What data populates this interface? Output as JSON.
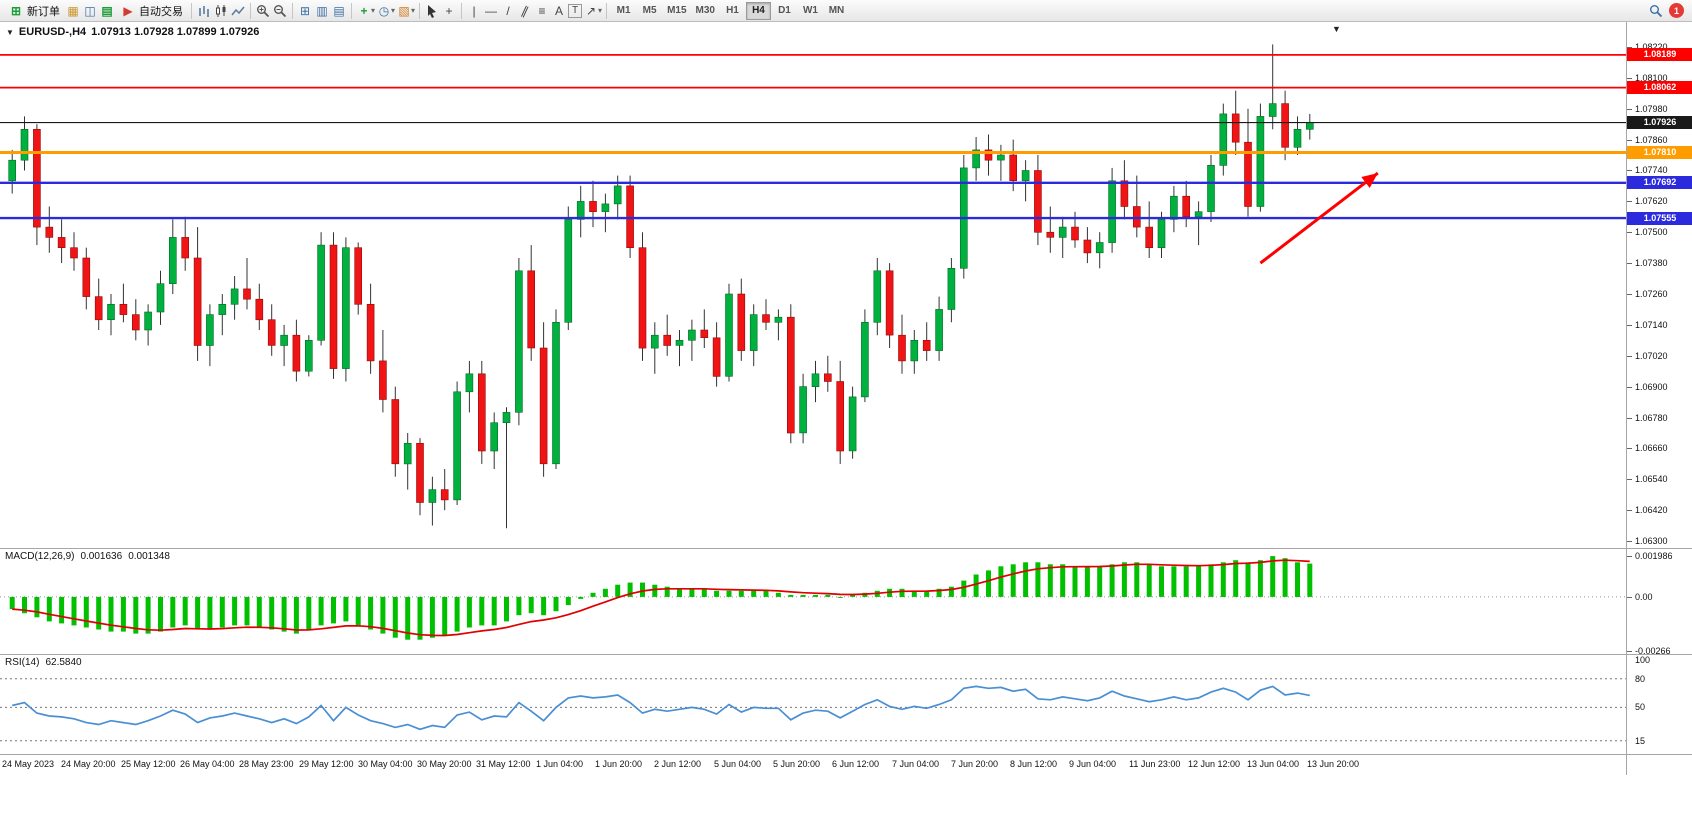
{
  "toolbar": {
    "new_order": "新订单",
    "autotrading": "自动交易",
    "timeframes": [
      "M1",
      "M5",
      "M15",
      "M30",
      "H1",
      "H4",
      "D1",
      "W1",
      "MN"
    ],
    "active_timeframe": "H4",
    "notification_badge": "1",
    "icons": {
      "new_order": "⊞",
      "new_chart": "▦",
      "profiles": "◫",
      "market_watch": "▤",
      "autotrading": "▶",
      "tile_windows": "⊞",
      "cascade_windows": "▥",
      "arrange_windows": "▤",
      "indicators": "+",
      "periods_clock": "◷",
      "templates": "▧",
      "crosshair": "+",
      "vertical_line": "|",
      "horizontal_line": "—",
      "trend_line": "/",
      "channel": "∥",
      "fibonacci": "≡",
      "text": "A",
      "text_label": "T",
      "arrow_tool": "↗",
      "dropdown": "▾"
    }
  },
  "chart_header": {
    "collapse_icon": "▼",
    "shift_marker": "▼",
    "symbol_period": "EURUSD-,H4",
    "ohlc": "1.07913 1.07928 1.07899 1.07926"
  },
  "price_axis": {
    "ticks": [
      "1.08220",
      "1.08100",
      "1.07980",
      "1.07860",
      "1.07740",
      "1.07620",
      "1.07500",
      "1.07380",
      "1.07260",
      "1.07140",
      "1.07020",
      "1.06900",
      "1.06780",
      "1.06660",
      "1.06540",
      "1.06420",
      "1.06300"
    ]
  },
  "levels": [
    {
      "label": "1.08189",
      "value": 1.08189,
      "color": "#fe0000",
      "stroke": 1.8,
      "type": "resistance-line"
    },
    {
      "label": "1.08062",
      "value": 1.08062,
      "color": "#fe0000",
      "stroke": 1.8,
      "type": "resistance-line"
    },
    {
      "label": "1.07926",
      "value": 1.07926,
      "color": "#1a1a1a",
      "stroke": 1.1,
      "type": "current-price-line"
    },
    {
      "label": "1.07810",
      "value": 1.0781,
      "color": "#ff9d00",
      "stroke": 3,
      "type": "pivot-line"
    },
    {
      "label": "1.07692",
      "value": 1.07692,
      "color": "#2b2bdd",
      "stroke": 2.4,
      "type": "support-line"
    },
    {
      "label": "1.07555",
      "value": 1.07555,
      "color": "#2b2bdd",
      "stroke": 2.4,
      "type": "support-line"
    }
  ],
  "macd_panel": {
    "label": "MACD(12,26,9)",
    "main_value": "0.001636",
    "signal_value": "0.001348"
  },
  "rsi_panel": {
    "label": "RSI(14)",
    "value": "62.5840"
  },
  "time_axis": [
    "24 May 2023",
    "24 May 20:00",
    "25 May 12:00",
    "26 May 04:00",
    "28 May 23:00",
    "29 May 12:00",
    "30 May 04:00",
    "30 May 20:00",
    "31 May 12:00",
    "1 Jun 04:00",
    "1 Jun 20:00",
    "2 Jun 12:00",
    "5 Jun 04:00",
    "5 Jun 20:00",
    "6 Jun 12:00",
    "7 Jun 04:00",
    "7 Jun 20:00",
    "8 Jun 12:00",
    "9 Jun 04:00",
    "11 Jun 23:00",
    "12 Jun 12:00",
    "13 Jun 04:00",
    "13 Jun 20:00"
  ],
  "chart_data": [
    {
      "id": "price",
      "type": "candlestick",
      "symbol": "EURUSD-",
      "timeframe": "H4",
      "open": 1.07913,
      "high": 1.07928,
      "low": 1.07899,
      "close": 1.07926,
      "ylim": [
        1.06273,
        1.08317
      ],
      "plot_span": 1310,
      "up_color": "#00b140",
      "down_color": "#f01414",
      "up_edge": "#046b25",
      "down_edge": "#8f0b0b",
      "wick_color": "#333333",
      "arrow": {
        "color": "#ff0000",
        "from": {
          "bar": 101,
          "price": 1.0738
        },
        "to": {
          "bar": 110.5,
          "price": 1.0773
        }
      },
      "candles": [
        [
          1.077,
          1.0782,
          1.0765,
          1.0778
        ],
        [
          1.0778,
          1.0795,
          1.0774,
          1.079
        ],
        [
          1.079,
          1.0792,
          1.0745,
          1.0752
        ],
        [
          1.0752,
          1.076,
          1.0742,
          1.0748
        ],
        [
          1.0748,
          1.0755,
          1.0738,
          1.0744
        ],
        [
          1.0744,
          1.075,
          1.0735,
          1.074
        ],
        [
          1.074,
          1.0744,
          1.072,
          1.0725
        ],
        [
          1.0725,
          1.0732,
          1.0712,
          1.0716
        ],
        [
          1.0716,
          1.0726,
          1.071,
          1.0722
        ],
        [
          1.0722,
          1.073,
          1.0715,
          1.0718
        ],
        [
          1.0718,
          1.0724,
          1.0708,
          1.0712
        ],
        [
          1.0712,
          1.0722,
          1.0706,
          1.0719
        ],
        [
          1.0719,
          1.0735,
          1.0714,
          1.073
        ],
        [
          1.073,
          1.0755,
          1.0726,
          1.0748
        ],
        [
          1.0748,
          1.0756,
          1.0735,
          1.074
        ],
        [
          1.074,
          1.0752,
          1.07,
          1.0706
        ],
        [
          1.0706,
          1.0722,
          1.0698,
          1.0718
        ],
        [
          1.0718,
          1.0726,
          1.071,
          1.0722
        ],
        [
          1.0722,
          1.0733,
          1.0716,
          1.0728
        ],
        [
          1.0728,
          1.074,
          1.072,
          1.0724
        ],
        [
          1.0724,
          1.073,
          1.0712,
          1.0716
        ],
        [
          1.0716,
          1.0722,
          1.0702,
          1.0706
        ],
        [
          1.0706,
          1.0714,
          1.0698,
          1.071
        ],
        [
          1.071,
          1.0716,
          1.0692,
          1.0696
        ],
        [
          1.0696,
          1.071,
          1.0694,
          1.0708
        ],
        [
          1.0708,
          1.075,
          1.0706,
          1.0745
        ],
        [
          1.0745,
          1.075,
          1.0693,
          1.0697
        ],
        [
          1.0697,
          1.0748,
          1.0692,
          1.0744
        ],
        [
          1.0744,
          1.0746,
          1.0718,
          1.0722
        ],
        [
          1.0722,
          1.073,
          1.0695,
          1.07
        ],
        [
          1.07,
          1.0712,
          1.068,
          1.0685
        ],
        [
          1.0685,
          1.069,
          1.0655,
          1.066
        ],
        [
          1.066,
          1.0672,
          1.065,
          1.0668
        ],
        [
          1.0668,
          1.067,
          1.064,
          1.0645
        ],
        [
          1.0645,
          1.0655,
          1.0636,
          1.065
        ],
        [
          1.065,
          1.0658,
          1.0642,
          1.0646
        ],
        [
          1.0646,
          1.0692,
          1.0644,
          1.0688
        ],
        [
          1.0688,
          1.07,
          1.068,
          1.0695
        ],
        [
          1.0695,
          1.07,
          1.066,
          1.0665
        ],
        [
          1.0665,
          1.068,
          1.0658,
          1.0676
        ],
        [
          1.0676,
          1.0682,
          1.0635,
          1.068
        ],
        [
          1.068,
          1.074,
          1.0675,
          1.0735
        ],
        [
          1.0735,
          1.0745,
          1.07,
          1.0705
        ],
        [
          1.0705,
          1.0715,
          1.0655,
          1.066
        ],
        [
          1.066,
          1.072,
          1.0658,
          1.0715
        ],
        [
          1.0715,
          1.076,
          1.0712,
          1.0755
        ],
        [
          1.0755,
          1.0768,
          1.0748,
          1.0762
        ],
        [
          1.0762,
          1.077,
          1.0752,
          1.0758
        ],
        [
          1.0758,
          1.0765,
          1.075,
          1.0761
        ],
        [
          1.0761,
          1.0772,
          1.0755,
          1.0768
        ],
        [
          1.0768,
          1.0772,
          1.074,
          1.0744
        ],
        [
          1.0744,
          1.075,
          1.07,
          1.0705
        ],
        [
          1.0705,
          1.0715,
          1.0695,
          1.071
        ],
        [
          1.071,
          1.0718,
          1.0702,
          1.0706
        ],
        [
          1.0706,
          1.0712,
          1.0698,
          1.0708
        ],
        [
          1.0708,
          1.0716,
          1.07,
          1.0712
        ],
        [
          1.0712,
          1.072,
          1.0705,
          1.0709
        ],
        [
          1.0709,
          1.0715,
          1.069,
          1.0694
        ],
        [
          1.0694,
          1.073,
          1.0692,
          1.0726
        ],
        [
          1.0726,
          1.0732,
          1.07,
          1.0704
        ],
        [
          1.0704,
          1.0722,
          1.0698,
          1.0718
        ],
        [
          1.0718,
          1.0724,
          1.0712,
          1.0715
        ],
        [
          1.0715,
          1.072,
          1.0708,
          1.0717
        ],
        [
          1.0717,
          1.0722,
          1.0668,
          1.0672
        ],
        [
          1.0672,
          1.0695,
          1.0668,
          1.069
        ],
        [
          1.069,
          1.07,
          1.0684,
          1.0695
        ],
        [
          1.0695,
          1.0702,
          1.0688,
          1.0692
        ],
        [
          1.0692,
          1.07,
          1.066,
          1.0665
        ],
        [
          1.0665,
          1.069,
          1.0662,
          1.0686
        ],
        [
          1.0686,
          1.072,
          1.0684,
          1.0715
        ],
        [
          1.0715,
          1.074,
          1.071,
          1.0735
        ],
        [
          1.0735,
          1.0738,
          1.0705,
          1.071
        ],
        [
          1.071,
          1.0718,
          1.0695,
          1.07
        ],
        [
          1.07,
          1.0712,
          1.0695,
          1.0708
        ],
        [
          1.0708,
          1.0715,
          1.07,
          1.0704
        ],
        [
          1.0704,
          1.0725,
          1.07,
          1.072
        ],
        [
          1.072,
          1.074,
          1.0715,
          1.0736
        ],
        [
          1.0736,
          1.078,
          1.0732,
          1.0775
        ],
        [
          1.0775,
          1.0787,
          1.077,
          1.0782
        ],
        [
          1.0782,
          1.0788,
          1.0772,
          1.0778
        ],
        [
          1.0778,
          1.0784,
          1.077,
          1.078
        ],
        [
          1.078,
          1.0786,
          1.0766,
          1.077
        ],
        [
          1.077,
          1.0778,
          1.0762,
          1.0774
        ],
        [
          1.0774,
          1.078,
          1.0745,
          1.075
        ],
        [
          1.075,
          1.076,
          1.0742,
          1.0748
        ],
        [
          1.0748,
          1.0756,
          1.074,
          1.0752
        ],
        [
          1.0752,
          1.0758,
          1.0744,
          1.0747
        ],
        [
          1.0747,
          1.0752,
          1.0738,
          1.0742
        ],
        [
          1.0742,
          1.075,
          1.0736,
          1.0746
        ],
        [
          1.0746,
          1.0775,
          1.0742,
          1.077
        ],
        [
          1.077,
          1.0778,
          1.0755,
          1.076
        ],
        [
          1.076,
          1.0772,
          1.0748,
          1.0752
        ],
        [
          1.0752,
          1.0762,
          1.074,
          1.0744
        ],
        [
          1.0744,
          1.0758,
          1.074,
          1.0755
        ],
        [
          1.0755,
          1.0768,
          1.075,
          1.0764
        ],
        [
          1.0764,
          1.077,
          1.0752,
          1.0756
        ],
        [
          1.0756,
          1.0762,
          1.0745,
          1.0758
        ],
        [
          1.0758,
          1.078,
          1.0754,
          1.0776
        ],
        [
          1.0776,
          1.08,
          1.0772,
          1.0796
        ],
        [
          1.0796,
          1.0805,
          1.078,
          1.0785
        ],
        [
          1.0785,
          1.0798,
          1.0756,
          1.076
        ],
        [
          1.076,
          1.08,
          1.0758,
          1.0795
        ],
        [
          1.0795,
          1.0823,
          1.079,
          1.08
        ],
        [
          1.08,
          1.0805,
          1.0778,
          1.0783
        ],
        [
          1.0783,
          1.0795,
          1.078,
          1.079
        ],
        [
          1.079,
          1.0796,
          1.0786,
          1.07926
        ]
      ]
    },
    {
      "id": "macd",
      "type": "bar",
      "name": "MACD(12,26,9) histogram with signal line",
      "ylim": [
        -0.00285,
        0.00235
      ],
      "bar_color": "#00c000",
      "signal_color": "#e00000",
      "axis": [
        {
          "label": "0.001986",
          "value": 0.001986
        },
        {
          "label": "0.00",
          "value": 0
        },
        {
          "label": "-0.00266",
          "value": -0.00266
        }
      ],
      "values": [
        -0.0006,
        -0.0008,
        -0.001,
        -0.0012,
        -0.0013,
        -0.0014,
        -0.0015,
        -0.0016,
        -0.0017,
        -0.0017,
        -0.0018,
        -0.0018,
        -0.0017,
        -0.0015,
        -0.0014,
        -0.0016,
        -0.0016,
        -0.0015,
        -0.0014,
        -0.0014,
        -0.0015,
        -0.0016,
        -0.0017,
        -0.0018,
        -0.0016,
        -0.0014,
        -0.0013,
        -0.0012,
        -0.0014,
        -0.0016,
        -0.0018,
        -0.002,
        -0.0021,
        -0.0021,
        -0.002,
        -0.0019,
        -0.0017,
        -0.0015,
        -0.0014,
        -0.0014,
        -0.0012,
        -0.0009,
        -0.0008,
        -0.0009,
        -0.0007,
        -0.0004,
        -0.0001,
        0.0002,
        0.0004,
        0.0006,
        0.0007,
        0.0007,
        0.0006,
        0.0005,
        0.0004,
        0.0004,
        0.0004,
        0.0003,
        0.0003,
        0.0003,
        0.0003,
        0.0003,
        0.0002,
        0.0001,
        0.0001,
        0.0001,
        0.0001,
        0.0,
        0.0001,
        0.0002,
        0.0003,
        0.0004,
        0.0004,
        0.0003,
        0.0003,
        0.0004,
        0.0005,
        0.0008,
        0.0011,
        0.0013,
        0.0015,
        0.0016,
        0.0017,
        0.0017,
        0.0016,
        0.0016,
        0.0015,
        0.0015,
        0.0015,
        0.0016,
        0.0017,
        0.0017,
        0.0016,
        0.0015,
        0.0015,
        0.0015,
        0.0015,
        0.0016,
        0.0017,
        0.0018,
        0.0017,
        0.0018,
        0.002,
        0.0019,
        0.0017,
        0.001636
      ]
    },
    {
      "id": "rsi",
      "type": "line",
      "name": "RSI(14)",
      "ylim": [
        0,
        105
      ],
      "line_color": "#4a8fd4",
      "levels": [
        80,
        50,
        15
      ],
      "axis": [
        "100",
        "80",
        "50",
        "15"
      ],
      "values": [
        52,
        55,
        44,
        41,
        40,
        38,
        34,
        32,
        36,
        34,
        32,
        36,
        41,
        47,
        43,
        34,
        39,
        41,
        44,
        41,
        38,
        34,
        38,
        33,
        40,
        52,
        36,
        50,
        42,
        36,
        33,
        29,
        32,
        27,
        31,
        29,
        42,
        45,
        37,
        41,
        40,
        55,
        46,
        36,
        50,
        60,
        62,
        60,
        61,
        63,
        55,
        44,
        48,
        46,
        48,
        50,
        48,
        43,
        53,
        45,
        50,
        49,
        49,
        37,
        44,
        47,
        46,
        39,
        46,
        53,
        58,
        51,
        48,
        51,
        49,
        53,
        58,
        70,
        72,
        70,
        71,
        67,
        69,
        59,
        58,
        61,
        59,
        57,
        60,
        67,
        62,
        59,
        56,
        58,
        61,
        58,
        60,
        66,
        70,
        66,
        58,
        68,
        72,
        63,
        65,
        62.58
      ]
    }
  ]
}
